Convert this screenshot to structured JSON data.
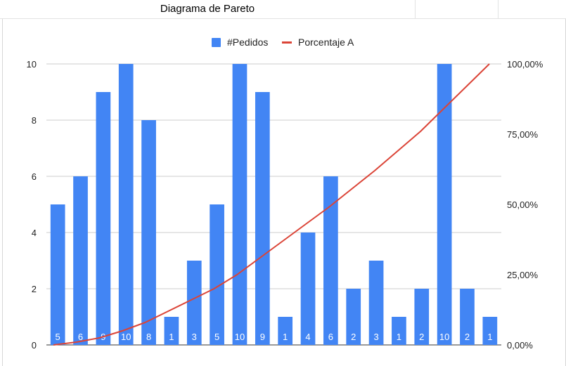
{
  "sheet": {
    "cell_title": "Diagrama de Pareto"
  },
  "chart_data": {
    "type": "bar",
    "title": "",
    "xlabel": "",
    "ylabel": "",
    "categories": [
      "",
      "",
      "",
      "",
      "",
      "",
      "",
      "",
      "",
      "",
      "",
      "",
      "",
      "",
      "",
      "",
      "",
      "",
      "",
      ""
    ],
    "series": [
      {
        "name": "#Pedidos",
        "type": "bar",
        "axis": "left",
        "color": "#4285f4",
        "values": [
          5,
          6,
          9,
          10,
          8,
          1,
          3,
          5,
          10,
          9,
          1,
          4,
          6,
          2,
          3,
          1,
          2,
          10,
          2,
          1
        ]
      },
      {
        "name": "Porcentaje A",
        "type": "line",
        "axis": "right",
        "color": "#db4437",
        "values": [
          0,
          0.01,
          0.025,
          0.05,
          0.08,
          0.12,
          0.16,
          0.2,
          0.25,
          0.31,
          0.37,
          0.43,
          0.49,
          0.555,
          0.62,
          0.69,
          0.76,
          0.84,
          0.92,
          1.0
        ]
      }
    ],
    "y_left": {
      "range": [
        0,
        10
      ],
      "ticks": [
        "0",
        "2",
        "4",
        "6",
        "8",
        "10"
      ]
    },
    "y_right": {
      "range": [
        0,
        1
      ],
      "ticks": [
        "0,00%",
        "25,00%",
        "50,00%",
        "75,00%",
        "100,00%"
      ]
    },
    "grid": true,
    "legend": "top"
  }
}
